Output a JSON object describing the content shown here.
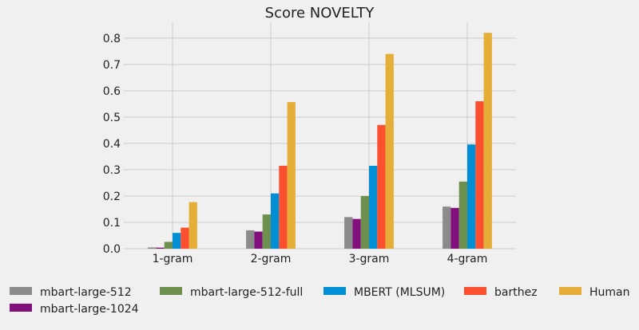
{
  "chart_data": {
    "type": "bar",
    "title": "Score NOVELTY",
    "xlabel": "",
    "ylabel": "",
    "ylim": [
      0,
      0.86
    ],
    "yticks": [
      "0.0",
      "0.1",
      "0.2",
      "0.3",
      "0.4",
      "0.5",
      "0.6",
      "0.7",
      "0.8"
    ],
    "ytick_values": [
      0,
      0.1,
      0.2,
      0.3,
      0.4,
      0.5,
      0.6,
      0.7,
      0.8
    ],
    "grid": true,
    "legend_position": "bottom",
    "categories": [
      "1-gram",
      "2-gram",
      "3-gram",
      "4-gram"
    ],
    "series": [
      {
        "name": "mbart-large-512",
        "color": "#8b8b8b",
        "values": [
          0.005,
          0.07,
          0.12,
          0.16
        ]
      },
      {
        "name": "mbart-large-1024",
        "color": "#810f7c",
        "values": [
          0.004,
          0.065,
          0.113,
          0.155
        ]
      },
      {
        "name": "mbart-large-512-full",
        "color": "#6d904f",
        "values": [
          0.026,
          0.13,
          0.2,
          0.255
        ]
      },
      {
        "name": "MBERT (MLSUM)",
        "color": "#008fd5",
        "values": [
          0.06,
          0.21,
          0.315,
          0.396
        ]
      },
      {
        "name": "barthez",
        "color": "#fc4f30",
        "values": [
          0.08,
          0.315,
          0.47,
          0.56
        ]
      },
      {
        "name": "Human",
        "color": "#e5ae38",
        "values": [
          0.177,
          0.557,
          0.74,
          0.82
        ]
      }
    ]
  }
}
